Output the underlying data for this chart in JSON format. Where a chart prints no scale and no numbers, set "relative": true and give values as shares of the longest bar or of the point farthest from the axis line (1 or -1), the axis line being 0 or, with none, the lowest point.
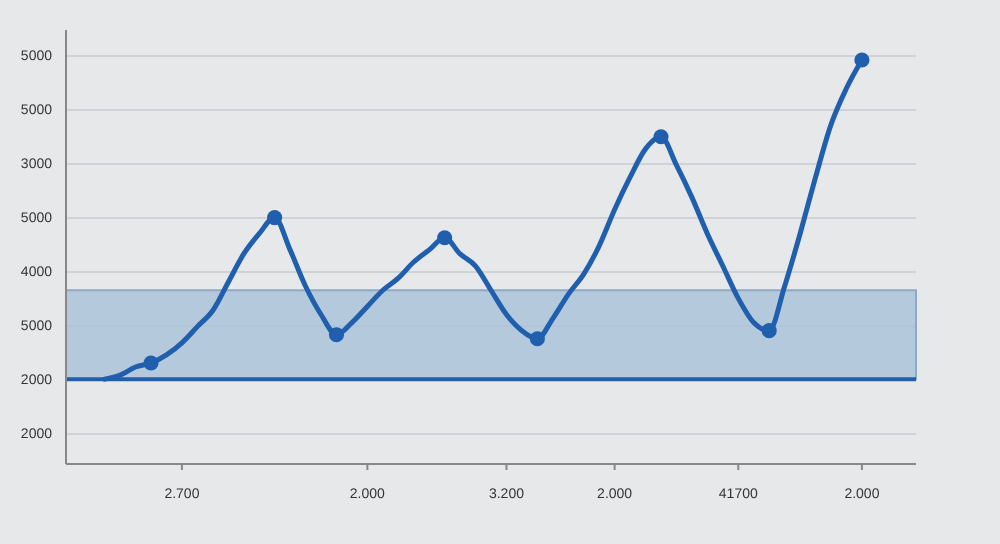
{
  "chart_data": {
    "type": "line",
    "relative": true,
    "categories": [
      null,
      null,
      null,
      null,
      null,
      null,
      null,
      "2.700",
      null,
      null,
      null,
      null,
      null,
      null,
      null,
      null,
      null,
      null,
      null,
      "2.000",
      null,
      null,
      null,
      null,
      null,
      null,
      null,
      null,
      "3.200",
      null,
      null,
      null,
      null,
      null,
      null,
      "2.000",
      null,
      null,
      null,
      null,
      null,
      null,
      null,
      "41700",
      null,
      null,
      null,
      null,
      null,
      null,
      null,
      "2.000",
      null,
      null,
      null
    ],
    "grid": "y",
    "annotations": [
      "5000",
      "5000",
      "3000",
      "5000",
      "4000",
      "5000",
      "2000",
      "2000"
    ],
    "series": [
      {
        "color": "#1f5fad",
        "marker": "none",
        "values": [
          null,
          null,
          0.21,
          0.22,
          0.24,
          0.25,
          0.27,
          0.3,
          0.34,
          0.38,
          0.45,
          0.52,
          0.57,
          0.61,
          0.53,
          0.44,
          0.37,
          0.32,
          0.35,
          0.39,
          0.43,
          0.46,
          0.5,
          0.53,
          0.56,
          0.52,
          0.49,
          0.43,
          0.37,
          0.33,
          0.31,
          0.36,
          0.42,
          0.47,
          0.54,
          0.63,
          0.71,
          0.78,
          0.81,
          0.74,
          0.66,
          0.57,
          0.49,
          0.41,
          0.35,
          0.33,
          0.44,
          0.57,
          0.71,
          0.84,
          0.93,
          1.0,
          null,
          null,
          null
        ]
      },
      {
        "type": "scatter",
        "color": "#1f5fad",
        "marker": "circle",
        "values": [
          null,
          null,
          null,
          null,
          null,
          0.25,
          null,
          null,
          null,
          null,
          null,
          null,
          null,
          0.61,
          null,
          null,
          null,
          0.32,
          null,
          null,
          null,
          null,
          null,
          null,
          0.56,
          null,
          null,
          null,
          null,
          null,
          0.31,
          null,
          null,
          null,
          null,
          null,
          null,
          null,
          0.81,
          null,
          null,
          null,
          null,
          null,
          null,
          0.33,
          null,
          null,
          null,
          null,
          null,
          1.0,
          null,
          null,
          null
        ]
      }
    ],
    "bands": [
      {
        "axis": "y",
        "from": 0.21,
        "to": 0.43,
        "color": "#a9c1da"
      }
    ],
    "ref_lines": [
      {
        "axis": "y",
        "value": 0.21,
        "color": "#1f5fad",
        "line_style": "solid"
      }
    ]
  }
}
